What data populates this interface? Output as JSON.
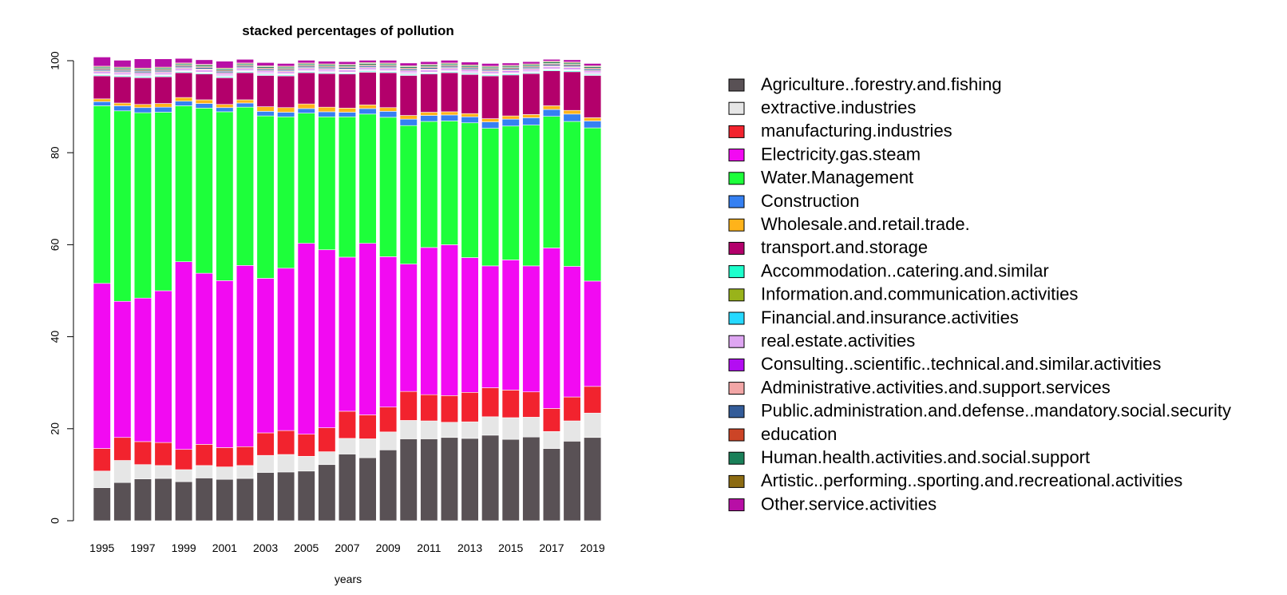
{
  "chart_data": {
    "type": "bar",
    "stacked": true,
    "title": "stacked percentages of pollution",
    "xlabel": "years",
    "ylabel": "",
    "ylim": [
      0,
      100
    ],
    "yticks": [
      0,
      20,
      40,
      60,
      80,
      100
    ],
    "xtick_labels": [
      "1995",
      "1997",
      "1999",
      "2001",
      "2003",
      "2005",
      "2007",
      "2009",
      "2011",
      "2013",
      "2015",
      "2017",
      "2019"
    ],
    "legend_position": "right",
    "categories": [
      "1995",
      "1996",
      "1997",
      "1998",
      "1999",
      "2000",
      "2001",
      "2002",
      "2003",
      "2004",
      "2005",
      "2006",
      "2007",
      "2008",
      "2009",
      "2010",
      "2011",
      "2012",
      "2013",
      "2014",
      "2015",
      "2016",
      "2017",
      "2018",
      "2019"
    ],
    "series": [
      {
        "name": "Agriculture..forestry.and.fishing",
        "color": "#595155",
        "values": [
          7.2,
          8.3,
          9.1,
          9.2,
          8.5,
          9.3,
          9.0,
          9.2,
          10.5,
          10.6,
          10.8,
          12.2,
          14.5,
          13.7,
          15.4,
          17.8,
          17.8,
          18.1,
          17.9,
          18.6,
          17.7,
          18.2,
          15.7,
          17.3,
          18.1
        ]
      },
      {
        "name": "extractive.industries",
        "color": "#e6e6e6",
        "values": [
          3.6,
          4.8,
          3.1,
          2.8,
          2.6,
          2.7,
          2.7,
          2.8,
          3.7,
          3.8,
          3.2,
          2.8,
          3.4,
          4.1,
          3.9,
          4.0,
          3.9,
          3.3,
          3.6,
          4.0,
          4.7,
          4.3,
          3.7,
          4.4,
          5.3
        ]
      },
      {
        "name": "manufacturing.industries",
        "color": "#f2232e",
        "values": [
          4.9,
          5.0,
          5.0,
          5.0,
          4.4,
          4.6,
          4.2,
          4.1,
          4.9,
          5.2,
          4.8,
          5.2,
          5.9,
          5.2,
          5.4,
          6.3,
          5.7,
          5.8,
          6.4,
          6.3,
          6.0,
          5.5,
          5.0,
          5.2,
          5.8
        ]
      },
      {
        "name": "Electricity.gas.steam",
        "color": "#f20af2",
        "values": [
          35.9,
          29.6,
          31.2,
          33.0,
          40.8,
          37.2,
          36.3,
          39.4,
          33.6,
          35.3,
          41.5,
          38.7,
          33.5,
          37.3,
          32.7,
          27.7,
          32.0,
          32.8,
          29.3,
          26.5,
          28.3,
          27.4,
          34.9,
          28.4,
          22.9
        ]
      },
      {
        "name": "Water.Management",
        "color": "#1dff3a",
        "values": [
          38.6,
          41.4,
          40.3,
          38.8,
          33.9,
          35.9,
          36.7,
          34.4,
          35.3,
          32.9,
          28.3,
          28.9,
          30.5,
          28.1,
          30.3,
          30.1,
          27.4,
          26.9,
          29.3,
          29.9,
          29.1,
          30.6,
          28.6,
          31.5,
          33.3
        ]
      },
      {
        "name": "Construction",
        "color": "#3580f2",
        "values": [
          0.9,
          1.1,
          1.1,
          1.1,
          1.0,
          1.0,
          0.9,
          0.9,
          1.0,
          1.0,
          1.0,
          1.1,
          1.0,
          1.2,
          1.3,
          1.4,
          1.3,
          1.3,
          1.3,
          1.4,
          1.5,
          1.6,
          1.5,
          1.6,
          1.5
        ]
      },
      {
        "name": "Wholesale.and.retail.trade.",
        "color": "#ffb31a",
        "values": [
          0.6,
          0.6,
          0.7,
          0.8,
          0.8,
          0.8,
          0.7,
          0.7,
          1.0,
          1.0,
          1.0,
          1.0,
          0.9,
          0.8,
          0.8,
          0.8,
          0.7,
          0.7,
          0.7,
          0.7,
          0.7,
          0.7,
          0.8,
          0.8,
          0.7
        ]
      },
      {
        "name": "transport.and.storage",
        "color": "#b3006b",
        "values": [
          5.0,
          5.7,
          5.8,
          5.8,
          5.4,
          5.6,
          5.8,
          5.9,
          6.8,
          6.9,
          6.8,
          7.3,
          7.4,
          7.1,
          7.6,
          8.7,
          8.3,
          8.5,
          8.5,
          9.3,
          8.9,
          8.9,
          7.6,
          8.4,
          9.2
        ]
      },
      {
        "name": "Accommodation..catering.and.similar",
        "color": "#1dffcc",
        "values": [
          0.2,
          0.2,
          0.2,
          0.2,
          0.2,
          0.2,
          0.2,
          0.2,
          0.2,
          0.2,
          0.2,
          0.2,
          0.2,
          0.2,
          0.2,
          0.2,
          0.2,
          0.2,
          0.2,
          0.2,
          0.2,
          0.2,
          0.2,
          0.2,
          0.2
        ]
      },
      {
        "name": "Information.and.communication.activities",
        "color": "#99b31a",
        "values": [
          0.1,
          0.1,
          0.1,
          0.1,
          0.1,
          0.1,
          0.1,
          0.1,
          0.1,
          0.1,
          0.1,
          0.1,
          0.1,
          0.1,
          0.1,
          0.1,
          0.1,
          0.1,
          0.1,
          0.1,
          0.1,
          0.1,
          0.1,
          0.1,
          0.1
        ]
      },
      {
        "name": "Financial.and.insurance.activities",
        "color": "#26d9ff",
        "values": [
          0.1,
          0.1,
          0.1,
          0.1,
          0.1,
          0.1,
          0.1,
          0.1,
          0.1,
          0.1,
          0.1,
          0.1,
          0.1,
          0.1,
          0.1,
          0.1,
          0.1,
          0.1,
          0.1,
          0.1,
          0.1,
          0.1,
          0.1,
          0.1,
          0.1
        ]
      },
      {
        "name": "real.estate.activities",
        "color": "#dea6f2",
        "values": [
          0.3,
          0.3,
          0.3,
          0.3,
          0.3,
          0.3,
          0.3,
          0.3,
          0.3,
          0.3,
          0.3,
          0.3,
          0.3,
          0.3,
          0.3,
          0.3,
          0.3,
          0.3,
          0.3,
          0.3,
          0.3,
          0.3,
          0.3,
          0.3,
          0.3
        ]
      },
      {
        "name": "Consulting..scientific..technical.and.similar.activities",
        "color": "#b30df2",
        "values": [
          0.2,
          0.2,
          0.2,
          0.2,
          0.2,
          0.2,
          0.2,
          0.2,
          0.2,
          0.2,
          0.2,
          0.2,
          0.2,
          0.2,
          0.2,
          0.2,
          0.2,
          0.2,
          0.2,
          0.2,
          0.2,
          0.2,
          0.2,
          0.2,
          0.2
        ]
      },
      {
        "name": "Administrative.activities.and.support.services",
        "color": "#f2a6a6",
        "values": [
          0.2,
          0.2,
          0.2,
          0.2,
          0.2,
          0.2,
          0.2,
          0.2,
          0.2,
          0.2,
          0.2,
          0.2,
          0.2,
          0.2,
          0.2,
          0.2,
          0.2,
          0.2,
          0.2,
          0.2,
          0.2,
          0.2,
          0.2,
          0.2,
          0.2
        ]
      },
      {
        "name": "Public.administration.and.defense..mandatory.social.security",
        "color": "#335c99",
        "values": [
          0.3,
          0.3,
          0.3,
          0.3,
          0.3,
          0.3,
          0.3,
          0.3,
          0.3,
          0.3,
          0.3,
          0.3,
          0.3,
          0.3,
          0.3,
          0.3,
          0.3,
          0.3,
          0.3,
          0.3,
          0.3,
          0.3,
          0.3,
          0.3,
          0.3
        ]
      },
      {
        "name": "education",
        "color": "#cc4426",
        "values": [
          0.2,
          0.2,
          0.2,
          0.2,
          0.2,
          0.2,
          0.2,
          0.2,
          0.2,
          0.2,
          0.2,
          0.2,
          0.2,
          0.2,
          0.2,
          0.2,
          0.2,
          0.2,
          0.2,
          0.2,
          0.2,
          0.2,
          0.2,
          0.2,
          0.2
        ]
      },
      {
        "name": "Human.health.activities.and.social.support",
        "color": "#1a8059",
        "values": [
          0.3,
          0.3,
          0.3,
          0.3,
          0.3,
          0.3,
          0.3,
          0.3,
          0.3,
          0.3,
          0.3,
          0.3,
          0.3,
          0.3,
          0.3,
          0.3,
          0.3,
          0.3,
          0.3,
          0.3,
          0.3,
          0.3,
          0.3,
          0.3,
          0.3
        ]
      },
      {
        "name": "Artistic..performing..sporting.and.recreational.activities",
        "color": "#8c6b12",
        "values": [
          0.2,
          0.2,
          0.2,
          0.2,
          0.2,
          0.2,
          0.2,
          0.2,
          0.2,
          0.2,
          0.2,
          0.2,
          0.2,
          0.2,
          0.2,
          0.2,
          0.2,
          0.2,
          0.2,
          0.2,
          0.2,
          0.2,
          0.2,
          0.2,
          0.2
        ]
      },
      {
        "name": "Other.service.activities",
        "color": "#b80fa6",
        "values": [
          2.0,
          1.5,
          2.0,
          1.8,
          1.0,
          1.0,
          1.5,
          0.8,
          0.7,
          0.6,
          0.6,
          0.6,
          0.6,
          0.5,
          0.6,
          0.6,
          0.6,
          0.6,
          0.6,
          0.6,
          0.5,
          0.5,
          0.4,
          0.5,
          0.5
        ]
      }
    ]
  }
}
